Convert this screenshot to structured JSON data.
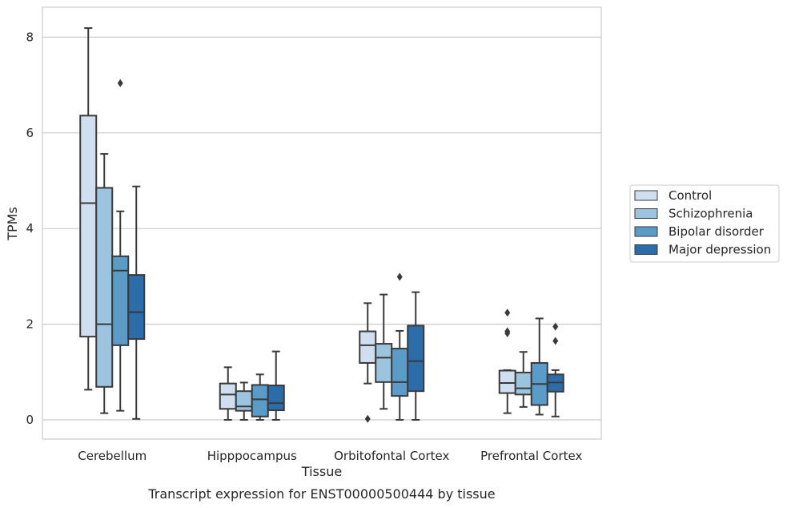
{
  "chart_data": {
    "type": "box",
    "xlabel": "Tissue",
    "ylabel": "TPMs",
    "caption": "Transcript expression for ENST00000500444 by tissue",
    "ylim": [
      -0.4,
      8.6
    ],
    "yticks": [
      0,
      2,
      4,
      6,
      8
    ],
    "grid": "horizontal",
    "legend_position": "right",
    "categories": [
      "Cerebellum",
      "Hipppocampus",
      "Orbitofontal Cortex",
      "Prefrontal Cortex"
    ],
    "series": [
      {
        "name": "Control",
        "color": "#cfdff0",
        "boxes": [
          {
            "min": 0.63,
            "q1": 1.74,
            "median": 4.53,
            "q3": 6.36,
            "max": 8.19,
            "outliers": []
          },
          {
            "min": 0.0,
            "q1": 0.23,
            "median": 0.53,
            "q3": 0.76,
            "max": 1.1,
            "outliers": []
          },
          {
            "min": 0.76,
            "q1": 1.19,
            "median": 1.56,
            "q3": 1.85,
            "max": 2.44,
            "outliers": [
              0.02
            ]
          },
          {
            "min": 0.14,
            "q1": 0.56,
            "median": 0.77,
            "q3": 1.03,
            "max": 1.04,
            "outliers": [
              1.81,
              1.85,
              2.24
            ]
          }
        ]
      },
      {
        "name": "Schizophrenia",
        "color": "#9cc4df",
        "boxes": [
          {
            "min": 0.14,
            "q1": 0.69,
            "median": 2.0,
            "q3": 4.85,
            "max": 5.56,
            "outliers": []
          },
          {
            "min": 0.0,
            "q1": 0.19,
            "median": 0.28,
            "q3": 0.6,
            "max": 0.78,
            "outliers": []
          },
          {
            "min": 0.23,
            "q1": 0.79,
            "median": 1.3,
            "q3": 1.59,
            "max": 2.62,
            "outliers": []
          },
          {
            "min": 0.27,
            "q1": 0.53,
            "median": 0.66,
            "q3": 0.99,
            "max": 1.42,
            "outliers": []
          }
        ]
      },
      {
        "name": "Bipolar disorder",
        "color": "#5b9bc8",
        "boxes": [
          {
            "min": 0.19,
            "q1": 1.56,
            "median": 3.12,
            "q3": 3.42,
            "max": 4.36,
            "outliers": [
              7.04
            ]
          },
          {
            "min": 0.0,
            "q1": 0.07,
            "median": 0.43,
            "q3": 0.73,
            "max": 0.95,
            "outliers": []
          },
          {
            "min": 0.0,
            "q1": 0.5,
            "median": 0.79,
            "q3": 1.49,
            "max": 1.86,
            "outliers": [
              2.99
            ]
          },
          {
            "min": 0.11,
            "q1": 0.31,
            "median": 0.75,
            "q3": 1.19,
            "max": 2.12,
            "outliers": []
          }
        ]
      },
      {
        "name": "Major depression",
        "color": "#2b6ca9",
        "boxes": [
          {
            "min": 0.02,
            "q1": 1.69,
            "median": 2.25,
            "q3": 3.03,
            "max": 4.88,
            "outliers": []
          },
          {
            "min": 0.0,
            "q1": 0.2,
            "median": 0.35,
            "q3": 0.72,
            "max": 1.43,
            "outliers": []
          },
          {
            "min": 0.0,
            "q1": 0.6,
            "median": 1.23,
            "q3": 1.97,
            "max": 2.67,
            "outliers": []
          },
          {
            "min": 0.07,
            "q1": 0.59,
            "median": 0.78,
            "q3": 0.95,
            "max": 1.04,
            "outliers": [
              1.65,
              1.95
            ]
          }
        ]
      }
    ]
  }
}
